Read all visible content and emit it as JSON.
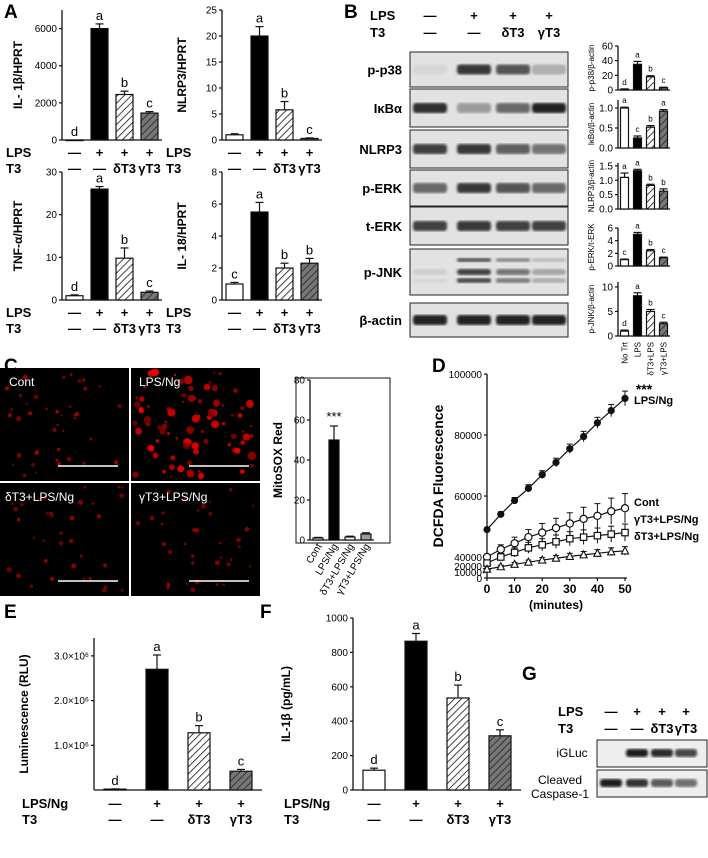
{
  "panels": [
    "A",
    "B",
    "C",
    "D",
    "E",
    "F",
    "G"
  ],
  "treatments": {
    "row1_label": "LPS",
    "row2_label": "T3",
    "lps": [
      "—",
      "+",
      "+",
      "+"
    ],
    "t3": [
      "—",
      "—",
      "δT3",
      "γT3"
    ]
  },
  "panel_a": {
    "charts": [
      {
        "ylabel": "IL- 1β/HPRT",
        "yticks": [
          "0",
          "2000",
          "4000",
          "6000"
        ],
        "ymax": 7000,
        "values": [
          0,
          6000,
          2450,
          1450
        ],
        "errors": [
          0,
          250,
          180,
          80
        ],
        "letters": [
          "d",
          "a",
          "b",
          "c"
        ]
      },
      {
        "ylabel": "NLRP3/HPRT",
        "yticks": [
          "0",
          "5",
          "10",
          "15",
          "20",
          "25"
        ],
        "ymax": 25,
        "values": [
          1.0,
          20.0,
          5.8,
          0.3
        ],
        "errors": [
          0.2,
          1.8,
          1.6,
          0.1
        ],
        "letters": [
          "",
          "a",
          "b",
          "c"
        ]
      },
      {
        "ylabel": "TNF-α/HPRT",
        "yticks": [
          "0",
          "10",
          "20",
          "30"
        ],
        "ymax": 30,
        "values": [
          1.0,
          26.0,
          9.8,
          1.8
        ],
        "errors": [
          0.2,
          0.6,
          2.4,
          0.3
        ],
        "letters": [
          "d",
          "a",
          "b",
          "c"
        ]
      },
      {
        "ylabel": "IL- 18/HPRT",
        "yticks": [
          "0",
          "2",
          "4",
          "6",
          "8"
        ],
        "ymax": 8,
        "values": [
          1.0,
          5.5,
          2.0,
          2.3
        ],
        "errors": [
          0.1,
          0.6,
          0.3,
          0.3
        ],
        "letters": [
          "c",
          "a",
          "b",
          "b"
        ]
      }
    ]
  },
  "panel_b": {
    "header": {
      "lps": [
        "—",
        "+",
        "+",
        "+"
      ],
      "t3": [
        "—",
        "—",
        "δT3",
        "γT3"
      ]
    },
    "blots": [
      "p-p38",
      "IκBα",
      "NLRP3",
      "p-ERK",
      "t-ERK",
      "p-JNK",
      "β-actin"
    ],
    "quant": [
      {
        "ylabel": "p-p38/β-actin",
        "yticks": [
          "0",
          "20",
          "40",
          "60"
        ],
        "ymax": 60,
        "values": [
          1,
          35,
          18,
          3
        ],
        "errors": [
          0.5,
          4,
          1.5,
          0.8
        ],
        "letters": [
          "d",
          "a",
          "b",
          "c"
        ]
      },
      {
        "ylabel": "IκBα/β-actin",
        "yticks": [
          "0.0",
          "0.5",
          "1.0"
        ],
        "ymax": 1.2,
        "values": [
          1.0,
          0.25,
          0.52,
          0.92
        ],
        "errors": [
          0.02,
          0.05,
          0.04,
          0.04
        ],
        "letters": [
          "a",
          "c",
          "b",
          "a"
        ]
      },
      {
        "ylabel": "NLRP3/β-actin",
        "yticks": [
          "0.0",
          "0.5",
          "1.0",
          "1.5"
        ],
        "ymax": 1.6,
        "values": [
          1.1,
          1.33,
          0.82,
          0.62
        ],
        "errors": [
          0.15,
          0.05,
          0.04,
          0.08
        ],
        "letters": [
          "a",
          "a",
          "b",
          "b"
        ]
      },
      {
        "ylabel": "p-ERK/t-ERK",
        "yticks": [
          "0",
          "2",
          "4",
          "6"
        ],
        "ymax": 6,
        "values": [
          1.0,
          5.0,
          2.4,
          1.3
        ],
        "errors": [
          0.1,
          0.3,
          0.2,
          0.1
        ],
        "letters": [
          "c",
          "a",
          "b",
          "c"
        ]
      },
      {
        "ylabel": "p-JNK/β-actin",
        "yticks": [
          "0",
          "5",
          "10"
        ],
        "ymax": 11,
        "values": [
          1.0,
          8.2,
          5.0,
          2.5
        ],
        "errors": [
          0.2,
          0.6,
          0.4,
          0.3
        ],
        "letters": [
          "d",
          "a",
          "b",
          "c"
        ]
      }
    ],
    "xcats": [
      "No Trt",
      "LPS",
      "δT3+LPS",
      "γT3+LPS"
    ]
  },
  "panel_c": {
    "images": [
      "Cont",
      "LPS/Ng",
      "δT3+LPS/Ng",
      "γT3+LPS/Ng"
    ],
    "chart": {
      "ylabel": "MitoSOX Red",
      "yticks": [
        "0",
        "20",
        "40",
        "60",
        "80"
      ],
      "ymax": 80,
      "categories": [
        "Cont",
        "LPS/Ng",
        "δT3+LPS/Ng",
        "γT3+LPS/Ng"
      ],
      "values": [
        1.0,
        50.0,
        1.5,
        3.0
      ],
      "errors": [
        0.3,
        7.0,
        0.4,
        0.6
      ],
      "sig": "***"
    }
  },
  "chart_data": {
    "type": "line",
    "title": "D",
    "xlabel": "(minutes)",
    "ylabel": "DCFDA Fluorescence",
    "x": [
      0,
      5,
      10,
      15,
      20,
      25,
      30,
      35,
      40,
      45,
      50
    ],
    "xticks": [
      "0",
      "10",
      "20",
      "30",
      "40",
      "50"
    ],
    "yticks": [
      "0",
      "10000",
      "20000",
      "40000",
      "60000",
      "80000",
      "100000"
    ],
    "series": [
      {
        "name": "LPS/Ng",
        "values": [
          49000,
          54000,
          58500,
          62500,
          67000,
          71000,
          75500,
          79500,
          84000,
          88000,
          92000
        ],
        "marker": "circle-filled"
      },
      {
        "name": "Cont",
        "values": [
          40000,
          42500,
          44500,
          46500,
          48000,
          49500,
          51000,
          52500,
          53500,
          55000,
          56000
        ],
        "marker": "circle-open"
      },
      {
        "name": "γT3+LPS/Ng",
        "values": [
          38000,
          40000,
          41500,
          43000,
          44000,
          45000,
          46000,
          46500,
          47000,
          47500,
          48000
        ],
        "marker": "square-open"
      },
      {
        "name": "δT3+LPS/Ng",
        "values": [
          36000,
          36800,
          37600,
          38300,
          39000,
          39600,
          40200,
          40700,
          41200,
          41700,
          42000
        ],
        "marker": "triangle-open"
      }
    ],
    "sig": "***"
  },
  "panel_e": {
    "ylabel": "Luminescence (RLU)",
    "yticks": [
      "1.0×10⁶",
      "2.0×10⁶",
      "3.0×10⁶"
    ],
    "ymax": 3400000,
    "values": [
      20000,
      2700000,
      1280000,
      420000
    ],
    "errors": [
      5000,
      320000,
      160000,
      40000
    ],
    "letters": [
      "d",
      "a",
      "b",
      "c"
    ],
    "row1_label": "LPS/Ng",
    "row2_label": "T3",
    "row1": [
      "—",
      "+",
      "+",
      "+"
    ],
    "row2": [
      "—",
      "—",
      "δT3",
      "γT3"
    ]
  },
  "panel_f": {
    "ylabel": "IL-1β (pg/mL)",
    "yticks": [
      "0",
      "200",
      "400",
      "600",
      "800",
      "1000"
    ],
    "ymax": 1000,
    "values": [
      115,
      865,
      535,
      315
    ],
    "errors": [
      12,
      45,
      75,
      35
    ],
    "letters": [
      "d",
      "a",
      "b",
      "c"
    ],
    "row1_label": "LPS/Ng",
    "row2_label": "T3",
    "row1": [
      "—",
      "+",
      "+",
      "+"
    ],
    "row2": [
      "—",
      "—",
      "δT3",
      "γT3"
    ]
  },
  "panel_g": {
    "lps": [
      "—",
      "+",
      "+",
      "+"
    ],
    "t3": [
      "—",
      "—",
      "δT3",
      "γT3"
    ],
    "blots": [
      "iGLuc",
      "Cleaved Caspase-1"
    ]
  }
}
